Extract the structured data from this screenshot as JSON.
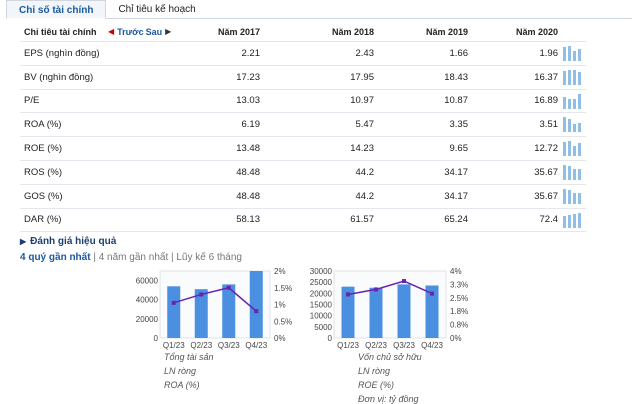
{
  "tabs": [
    {
      "label": "Chỉ số tài chính",
      "active": true
    },
    {
      "label": "Chỉ tiêu kế hoạch",
      "active": false
    }
  ],
  "table": {
    "header_label": "Chỉ tiêu tài chính",
    "nav_prev": "Trước",
    "nav_next": "Sau",
    "years": [
      "Năm 2017",
      "Năm 2018",
      "Năm 2019",
      "Năm 2020"
    ],
    "rows": [
      {
        "label": "EPS (nghìn đồng)",
        "values": [
          "2.21",
          "2.43",
          "1.66",
          "1.96"
        ],
        "trend": [
          2.21,
          2.43,
          1.66,
          1.96
        ]
      },
      {
        "label": "BV (nghìn đồng)",
        "values": [
          "17.23",
          "17.95",
          "18.43",
          "16.37"
        ],
        "trend": [
          17.23,
          17.95,
          18.43,
          16.37
        ]
      },
      {
        "label": "P/E",
        "values": [
          "13.03",
          "10.97",
          "10.87",
          "16.89"
        ],
        "trend": [
          13.03,
          10.97,
          10.87,
          16.89
        ]
      },
      {
        "label": "ROA (%)",
        "values": [
          "6.19",
          "5.47",
          "3.35",
          "3.51"
        ],
        "trend": [
          6.19,
          5.47,
          3.35,
          3.51
        ]
      },
      {
        "label": "ROE (%)",
        "values": [
          "13.48",
          "14.23",
          "9.65",
          "12.72"
        ],
        "trend": [
          13.48,
          14.23,
          9.65,
          12.72
        ]
      },
      {
        "label": "ROS (%)",
        "values": [
          "48.48",
          "44.2",
          "34.17",
          "35.67"
        ],
        "trend": [
          48.48,
          44.2,
          34.17,
          35.67
        ]
      },
      {
        "label": "GOS (%)",
        "values": [
          "48.48",
          "44.2",
          "34.17",
          "35.67"
        ],
        "trend": [
          48.48,
          44.2,
          34.17,
          35.67
        ]
      },
      {
        "label": "DAR (%)",
        "values": [
          "58.13",
          "61.57",
          "65.24",
          "72.4"
        ],
        "trend": [
          58.13,
          61.57,
          65.24,
          72.4
        ]
      }
    ]
  },
  "section_title": "Đánh giá hiệu quả",
  "periods": {
    "items": [
      "4 quý gần nhất",
      "4 năm gần nhất",
      "Lũy kế 6 tháng"
    ],
    "separator": " | ",
    "active_index": 0
  },
  "colors": {
    "bar": "#4a8fe0",
    "line": "#6a23b0",
    "spark": "#8fbfe6",
    "accent": "#1a5aa0"
  },
  "unit_note": "Đơn vị: tỷ đồng",
  "chart_data": [
    {
      "type": "bar",
      "categories": [
        "Q1/23",
        "Q2/23",
        "Q3/23",
        "Q4/23"
      ],
      "y_left": {
        "ticks": [
          "0",
          "20000",
          "40000",
          "60000"
        ],
        "range": [
          0,
          70000
        ]
      },
      "y_right": {
        "ticks": [
          "0%",
          "0.5%",
          "1%",
          "1.5%",
          "2%"
        ],
        "range": [
          0,
          2
        ]
      },
      "series": [
        {
          "name": "Tổng tài sản",
          "kind": "bar",
          "axis": "left",
          "values": [
            54000,
            51000,
            56000,
            70000
          ]
        },
        {
          "name": "LN ròng",
          "kind": "bar",
          "axis": "left",
          "values": [
            null,
            null,
            null,
            null
          ]
        },
        {
          "name": "ROA (%)",
          "kind": "line",
          "axis": "right",
          "values": [
            1.05,
            1.3,
            1.5,
            0.8
          ]
        }
      ],
      "grid": false,
      "legend_position": "bottom"
    },
    {
      "type": "bar",
      "categories": [
        "Q1/23",
        "Q2/23",
        "Q3/23",
        "Q4/23"
      ],
      "y_left": {
        "ticks": [
          "0",
          "5000",
          "10000",
          "15000",
          "20000",
          "25000",
          "30000"
        ],
        "range": [
          0,
          30000
        ]
      },
      "y_right": {
        "ticks": [
          "0%",
          "0.8%",
          "1.8%",
          "2.5%",
          "3.3%",
          "4%"
        ],
        "range": [
          0,
          4
        ]
      },
      "series": [
        {
          "name": "Vốn chủ sở hữu",
          "kind": "bar",
          "axis": "left",
          "values": [
            23000,
            22500,
            24000,
            23500
          ]
        },
        {
          "name": "LN ròng",
          "kind": "bar",
          "axis": "left",
          "values": [
            null,
            null,
            null,
            null
          ]
        },
        {
          "name": "ROE (%)",
          "kind": "line",
          "axis": "right",
          "values": [
            2.6,
            2.9,
            3.4,
            2.65
          ]
        }
      ],
      "grid": false,
      "legend_position": "bottom"
    }
  ]
}
